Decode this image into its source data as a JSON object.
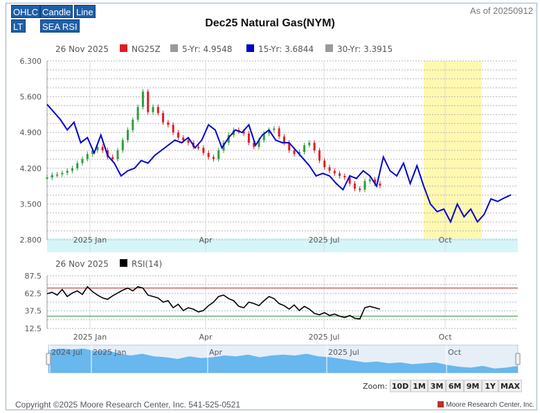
{
  "toolbar": {
    "ohlc": "OHLC",
    "candle": "Candle",
    "line": "Line",
    "lt": "LT",
    "sea_rsi": "SEA RSI"
  },
  "header": {
    "title": "Dec25 Natural Gas(NYM)",
    "as_of": "As of 20250912"
  },
  "legend": {
    "date": "26 Nov 2025",
    "items": [
      {
        "label": "NG25Z",
        "color": "#e31b23"
      },
      {
        "label": "5-Yr: 4.9548",
        "color": "#9a9a9a"
      },
      {
        "label": "15-Yr: 3.6844",
        "color": "#0000cc"
      },
      {
        "label": "30-Yr: 3.3915",
        "color": "#9a9a9a"
      }
    ]
  },
  "rsi_legend": {
    "date": "26 Nov 2025",
    "label": "RSI(14)",
    "color": "#000000"
  },
  "navigator": {
    "labels": [
      "2024 Jul",
      "2025 Jan",
      "Apr",
      "2025 Jul",
      "Oct"
    ]
  },
  "zoom": {
    "label": "Zoom:",
    "buttons": [
      "10D",
      "1M",
      "3M",
      "6M",
      "9M",
      "1Y",
      "MAX"
    ]
  },
  "footer": {
    "copyright": "Copyright ©2025 Moore Research Center, Inc. 541-525-0521",
    "brand": "Moore Research Center, Inc."
  },
  "chart_data": [
    {
      "type": "line",
      "name": "price",
      "yticks": [
        "6.300",
        "5.600",
        "4.900",
        "4.200",
        "3.500",
        "2.800"
      ],
      "ylim": [
        2.8,
        6.3
      ],
      "x_labels": [
        "2025 Jan",
        "Apr",
        "2025 Jul",
        "Oct"
      ],
      "highlight_color": "#fff8b0",
      "series": [
        {
          "name": "NG25Z",
          "color": "#e31b23",
          "x": [
            0,
            3,
            6,
            9,
            12,
            15,
            18,
            21,
            24,
            27,
            30,
            33,
            36,
            39,
            42,
            45,
            48,
            51,
            54,
            57,
            60,
            63,
            66,
            69,
            72,
            75,
            78,
            81,
            84,
            87,
            90,
            93,
            96,
            99,
            102,
            105,
            108,
            111,
            114,
            117,
            120,
            123,
            126,
            129,
            132,
            135,
            138,
            141,
            144,
            147,
            150,
            153,
            156,
            159,
            162,
            165,
            168,
            171,
            174,
            177,
            180,
            183,
            186,
            189,
            192,
            195,
            198
          ],
          "values": [
            4.02,
            4.07,
            4.08,
            4.11,
            4.15,
            4.2,
            4.3,
            4.38,
            4.48,
            4.55,
            4.62,
            4.55,
            4.42,
            4.38,
            4.55,
            4.75,
            4.95,
            5.15,
            5.4,
            5.7,
            5.3,
            5.4,
            5.28,
            5.1,
            5.05,
            4.9,
            4.8,
            4.75,
            4.7,
            4.62,
            4.6,
            4.5,
            4.42,
            4.38,
            4.55,
            4.7,
            4.85,
            4.95,
            4.92,
            4.88,
            4.7,
            4.62,
            4.75,
            4.88,
            4.95,
            4.98,
            4.82,
            4.7,
            4.55,
            4.48,
            4.52,
            4.65,
            4.7,
            4.55,
            4.35,
            4.22,
            4.15,
            4.1,
            4.05,
            4.02,
            3.9,
            3.8,
            3.78,
            3.95,
            3.98,
            3.9,
            3.86
          ]
        },
        {
          "name": "15-Yr: 3.6844",
          "color": "#0000cc",
          "x": [
            0,
            4,
            8,
            12,
            16,
            20,
            24,
            28,
            32,
            36,
            40,
            44,
            48,
            52,
            56,
            60,
            64,
            68,
            72,
            76,
            80,
            84,
            88,
            92,
            96,
            100,
            104,
            108,
            112,
            116,
            120,
            124,
            128,
            132,
            136,
            140,
            144,
            148,
            152,
            156,
            160,
            164,
            168,
            172,
            176,
            180,
            184,
            188,
            192,
            196,
            200,
            204,
            208,
            212,
            216,
            220,
            224,
            228,
            232,
            236,
            240,
            244,
            248,
            252,
            256,
            260,
            264,
            268,
            272,
            276
          ],
          "values": [
            5.45,
            5.3,
            5.15,
            4.95,
            5.1,
            4.7,
            4.8,
            4.5,
            4.85,
            4.45,
            4.3,
            4.05,
            4.15,
            4.2,
            4.35,
            4.3,
            4.45,
            4.55,
            4.65,
            4.75,
            4.7,
            4.8,
            4.6,
            4.75,
            5.05,
            4.95,
            4.6,
            4.8,
            4.95,
            4.9,
            5.05,
            4.65,
            4.85,
            4.95,
            4.75,
            4.7,
            4.7,
            4.55,
            4.4,
            4.25,
            4.05,
            4.1,
            4.05,
            3.9,
            3.78,
            4.05,
            4.0,
            4.15,
            4.05,
            3.85,
            4.42,
            4.15,
            4.05,
            4.3,
            3.9,
            4.25,
            3.85,
            3.5,
            3.35,
            3.4,
            3.15,
            3.5,
            3.25,
            3.4,
            3.15,
            3.3,
            3.6,
            3.55,
            3.62,
            3.68
          ]
        }
      ]
    },
    {
      "type": "line",
      "name": "RSI(14)",
      "yticks": [
        "87.5",
        "62.5",
        "37.5",
        "12.5"
      ],
      "ylim": [
        12.5,
        87.5
      ],
      "upper_line": 70,
      "lower_line": 30,
      "x_labels": [
        "2025 Jan",
        "Apr",
        "2025 Jul",
        "Oct"
      ],
      "series": [
        {
          "name": "RSI(14)",
          "color": "#000000",
          "x": [
            0,
            3,
            6,
            9,
            12,
            15,
            18,
            21,
            24,
            27,
            30,
            33,
            36,
            39,
            42,
            45,
            48,
            51,
            54,
            57,
            60,
            63,
            66,
            69,
            72,
            75,
            78,
            81,
            84,
            87,
            90,
            93,
            96,
            99,
            102,
            105,
            108,
            111,
            114,
            117,
            120,
            123,
            126,
            129,
            132,
            135,
            138,
            141,
            144,
            147,
            150,
            153,
            156,
            159,
            162,
            165,
            168,
            171,
            174,
            177,
            180,
            183,
            186,
            189,
            192,
            195,
            198
          ],
          "values": [
            62,
            64,
            60,
            68,
            58,
            63,
            66,
            61,
            72,
            65,
            60,
            56,
            54,
            59,
            63,
            67,
            70,
            66,
            72,
            70,
            60,
            58,
            56,
            50,
            52,
            42,
            47,
            38,
            42,
            40,
            36,
            38,
            45,
            50,
            58,
            60,
            55,
            52,
            44,
            42,
            50,
            48,
            45,
            52,
            58,
            55,
            48,
            45,
            40,
            46,
            38,
            44,
            40,
            34,
            32,
            35,
            31,
            33,
            30,
            28,
            31,
            27,
            26,
            42,
            44,
            42,
            40
          ]
        }
      ]
    },
    {
      "type": "area",
      "name": "navigator",
      "color": "#5ab0ec",
      "x": [
        0,
        5,
        10,
        15,
        20,
        25,
        30,
        35,
        40,
        45,
        50,
        55,
        60,
        65,
        70,
        75,
        80,
        85,
        90,
        95,
        100,
        105,
        110,
        115,
        120,
        125,
        130,
        135,
        140,
        145,
        150,
        155,
        160,
        165,
        170,
        175,
        180,
        185,
        190,
        195,
        200
      ],
      "values": [
        5.4,
        5.6,
        5.5,
        5.6,
        5.3,
        5.4,
        5.0,
        4.8,
        5.0,
        4.7,
        4.6,
        4.4,
        4.7,
        4.5,
        4.6,
        4.8,
        4.7,
        4.9,
        4.6,
        4.8,
        4.9,
        4.8,
        5.0,
        4.7,
        4.6,
        4.4,
        4.2,
        4.0,
        4.1,
        3.9,
        4.0,
        3.8,
        3.9,
        4.0,
        3.7,
        3.5,
        3.4,
        3.6,
        3.3,
        3.4,
        3.6
      ]
    }
  ]
}
